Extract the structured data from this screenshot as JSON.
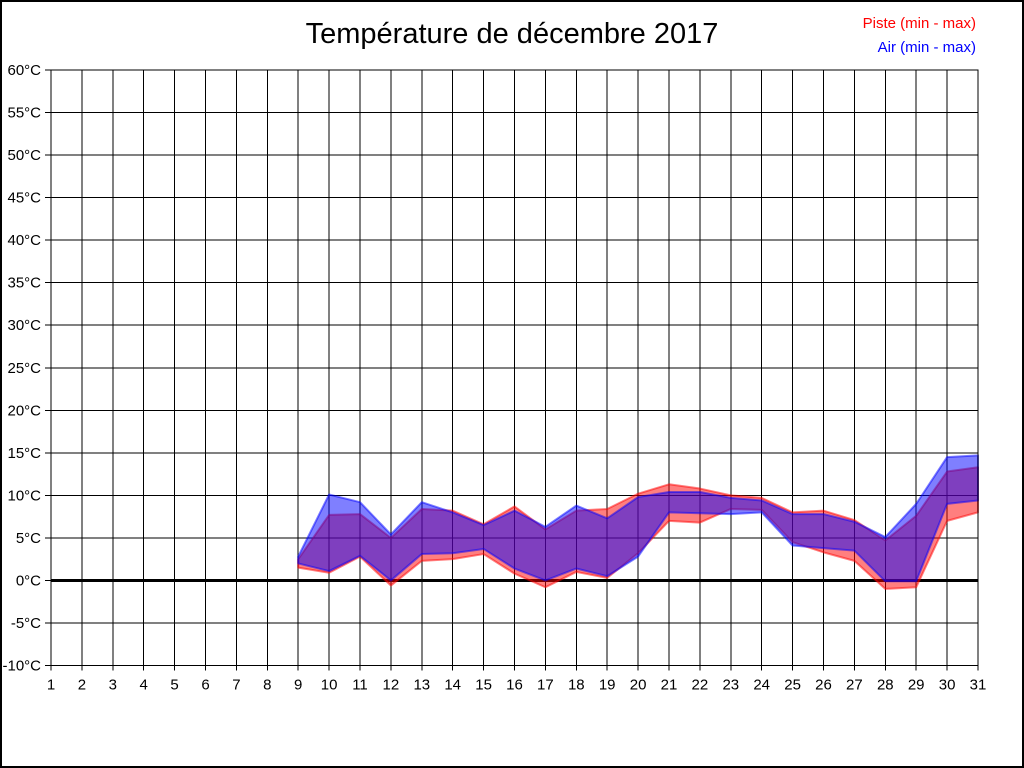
{
  "page": {
    "background": "#ffffff",
    "border_color": "#000000"
  },
  "header": {
    "title": "Température de décembre 2017"
  },
  "legend": [
    {
      "label": "Piste (min - max)",
      "color": "#ff0000"
    },
    {
      "label": "Air (min - max)",
      "color": "#0000ff"
    }
  ],
  "chart_data": {
    "type": "area",
    "title": "Température de décembre 2017",
    "xlabel": "",
    "ylabel": "",
    "xlim": [
      1,
      31
    ],
    "ylim": [
      -10,
      60
    ],
    "grid": true,
    "zero_line_bold": true,
    "legend_position": "top-right",
    "x_tick_labels": [
      "1",
      "2",
      "3",
      "4",
      "5",
      "6",
      "7",
      "8",
      "9",
      "10",
      "11",
      "12",
      "13",
      "14",
      "15",
      "16",
      "17",
      "18",
      "19",
      "20",
      "21",
      "22",
      "23",
      "24",
      "25",
      "26",
      "27",
      "28",
      "29",
      "30",
      "31"
    ],
    "y_tick_labels": [
      "-10°C",
      "-5°C",
      "0°C",
      "5°C",
      "10°C",
      "15°C",
      "20°C",
      "25°C",
      "30°C",
      "35°C",
      "40°C",
      "45°C",
      "50°C",
      "55°C",
      "60°C"
    ],
    "y_tick_values": [
      -10,
      -5,
      0,
      5,
      10,
      15,
      20,
      25,
      30,
      35,
      40,
      45,
      50,
      55,
      60
    ],
    "days": [
      9,
      10,
      11,
      12,
      13,
      14,
      15,
      16,
      17,
      18,
      19,
      20,
      21,
      22,
      23,
      24,
      25,
      26,
      27,
      28,
      29,
      30,
      31
    ],
    "series": [
      {
        "name": "Piste (min - max)",
        "color": "#ff0000",
        "fill_opacity": 0.5,
        "min": [
          1.5,
          0.9,
          2.8,
          -0.6,
          2.3,
          2.5,
          3.1,
          0.8,
          -0.8,
          1.0,
          0.3,
          3.2,
          7.0,
          6.8,
          8.4,
          8.3,
          4.5,
          3.3,
          2.3,
          -1.0,
          -0.8,
          7.0,
          8.0
        ],
        "max": [
          2.5,
          7.7,
          7.8,
          5.0,
          8.4,
          8.2,
          6.6,
          8.7,
          6.0,
          8.2,
          8.4,
          10.2,
          11.3,
          10.8,
          10.0,
          9.7,
          8.0,
          8.2,
          7.1,
          4.7,
          7.6,
          12.8,
          13.3
        ]
      },
      {
        "name": "Air (min - max)",
        "color": "#0000ff",
        "fill_opacity": 0.5,
        "min": [
          2.0,
          1.1,
          2.9,
          0.0,
          3.1,
          3.2,
          3.7,
          1.4,
          0.0,
          1.4,
          0.5,
          2.8,
          8.0,
          7.9,
          7.8,
          8.0,
          4.1,
          3.8,
          3.5,
          -0.1,
          -0.1,
          9.0,
          9.4
        ],
        "max": [
          2.8,
          10.1,
          9.2,
          5.4,
          9.2,
          8.0,
          6.5,
          8.2,
          6.3,
          8.8,
          7.3,
          9.8,
          10.4,
          10.4,
          9.7,
          9.4,
          7.8,
          7.8,
          6.9,
          5.1,
          9.0,
          14.5,
          14.7
        ]
      }
    ]
  }
}
